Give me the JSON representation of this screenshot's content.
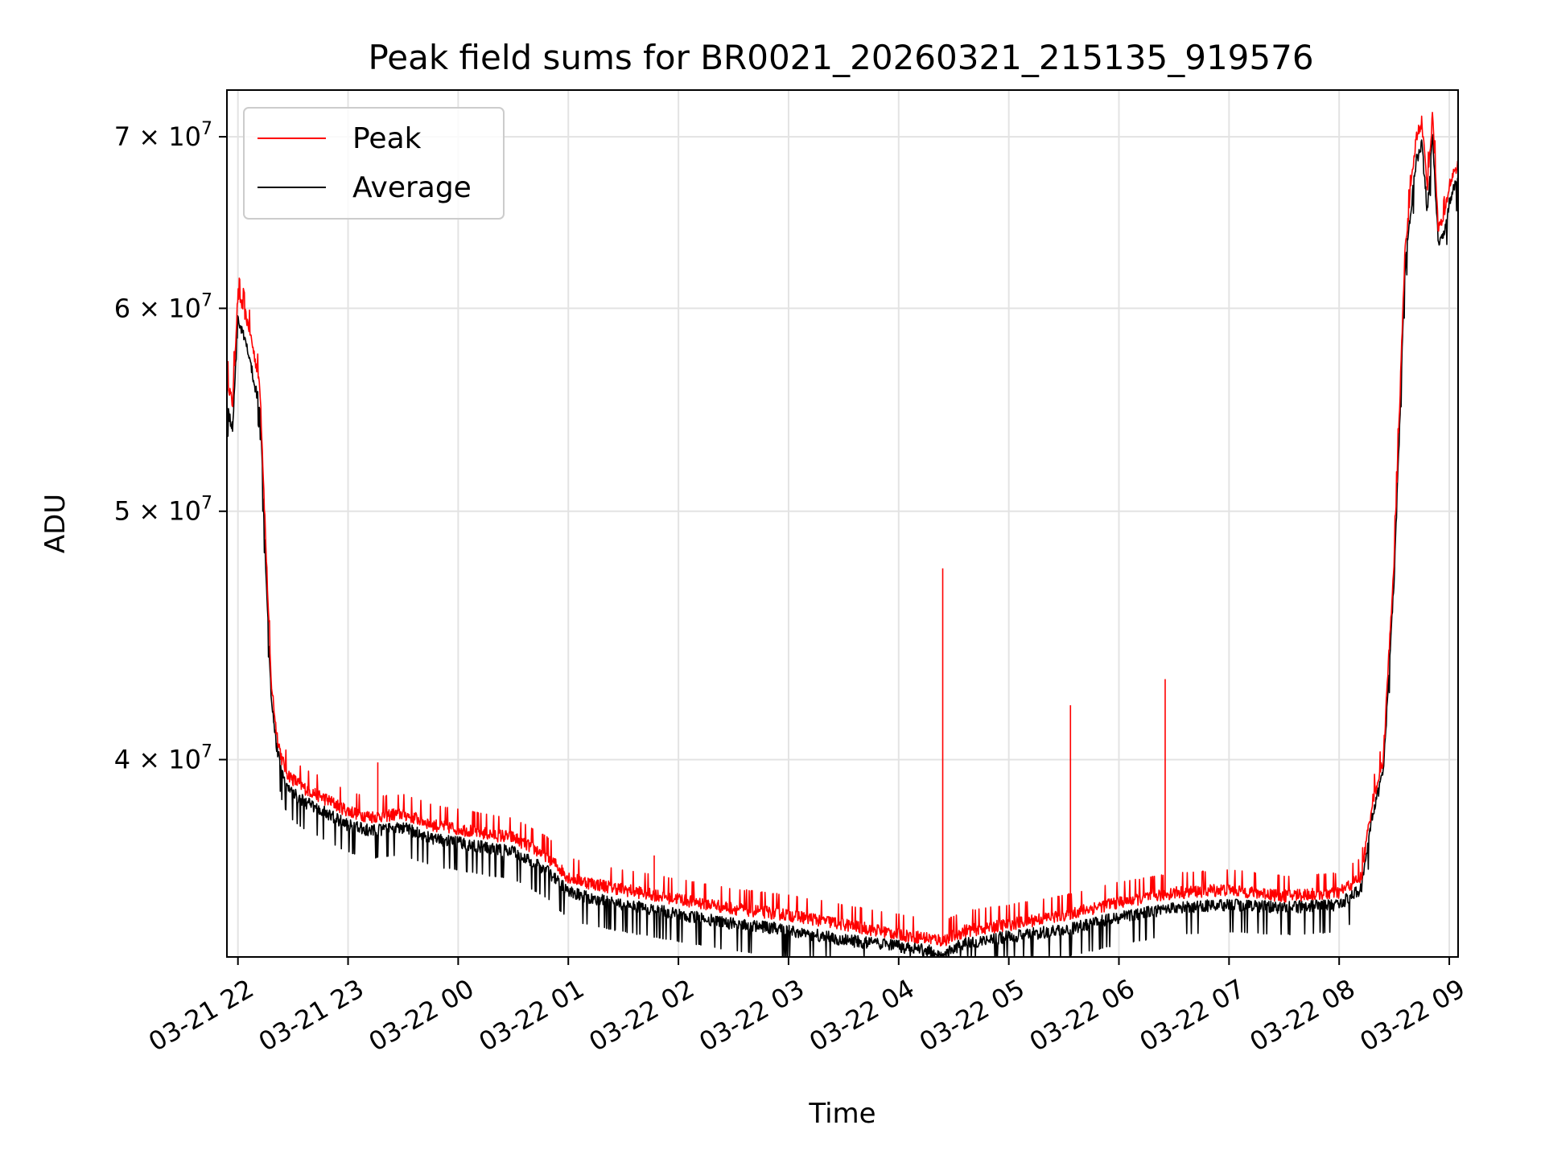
{
  "chart_data": {
    "type": "line",
    "title": "Peak field sums for BR0021_20260321_215135_919576",
    "xlabel": "Time",
    "ylabel": "ADU",
    "yscale": "log",
    "grid": true,
    "legend_position": "top-left",
    "xlim_hours": [
      -0.1,
      11.08
    ],
    "ylim": [
      33500000,
      73000000
    ],
    "x_ticks": [
      {
        "hours": 0,
        "label": "03-21 22"
      },
      {
        "hours": 1,
        "label": "03-21 23"
      },
      {
        "hours": 2,
        "label": "03-22 00"
      },
      {
        "hours": 3,
        "label": "03-22 01"
      },
      {
        "hours": 4,
        "label": "03-22 02"
      },
      {
        "hours": 5,
        "label": "03-22 03"
      },
      {
        "hours": 6,
        "label": "03-22 04"
      },
      {
        "hours": 7,
        "label": "03-22 05"
      },
      {
        "hours": 8,
        "label": "03-22 06"
      },
      {
        "hours": 9,
        "label": "03-22 07"
      },
      {
        "hours": 10,
        "label": "03-22 08"
      },
      {
        "hours": 11,
        "label": "03-22 09"
      }
    ],
    "y_ticks": [
      {
        "value": 40000000,
        "mantissa": "4",
        "exponent": "7"
      },
      {
        "value": 50000000,
        "mantissa": "5",
        "exponent": "7"
      },
      {
        "value": 60000000,
        "mantissa": "6",
        "exponent": "7"
      },
      {
        "value": 70000000,
        "mantissa": "7",
        "exponent": "7"
      }
    ],
    "series": [
      {
        "name": "Peak",
        "color": "#ff0000",
        "x_hours": [
          -0.1,
          -0.05,
          0.0,
          0.05,
          0.1,
          0.15,
          0.2,
          0.25,
          0.3,
          0.35,
          0.4,
          0.45,
          0.5,
          0.6,
          0.7,
          0.8,
          1.0,
          1.2,
          1.5,
          1.8,
          2.0,
          2.3,
          2.5,
          2.8,
          3.0,
          3.2,
          3.5,
          4.0,
          4.5,
          5.0,
          5.5,
          6.0,
          6.4,
          6.6,
          7.0,
          7.5,
          8.0,
          8.5,
          9.0,
          9.5,
          10.0,
          10.2,
          10.3,
          10.4,
          10.5,
          10.6,
          10.7,
          10.75,
          10.8,
          10.85,
          10.9,
          10.95,
          11.0,
          11.05,
          11.08
        ],
        "values": [
          56500000,
          55000000,
          60800000,
          60000000,
          59000000,
          57500000,
          56000000,
          49000000,
          43000000,
          41000000,
          40000000,
          39500000,
          39300000,
          39000000,
          38800000,
          38600000,
          38200000,
          38000000,
          38100000,
          37700000,
          37600000,
          37400000,
          37300000,
          36700000,
          36000000,
          35800000,
          35600000,
          35300000,
          35000000,
          34800000,
          34500000,
          34200000,
          34000000,
          34300000,
          34500000,
          34800000,
          35200000,
          35500000,
          35600000,
          35400000,
          35500000,
          36000000,
          38500000,
          40000000,
          48000000,
          63500000,
          70000000,
          71000000,
          67000000,
          71500000,
          64500000,
          65000000,
          67000000,
          68000000,
          68200000
        ]
      },
      {
        "name": "Average",
        "color": "#000000",
        "x_hours": [
          -0.1,
          -0.05,
          0.0,
          0.05,
          0.1,
          0.15,
          0.2,
          0.25,
          0.3,
          0.35,
          0.4,
          0.45,
          0.5,
          0.6,
          0.7,
          0.8,
          1.0,
          1.2,
          1.5,
          1.8,
          2.0,
          2.3,
          2.5,
          2.8,
          3.0,
          3.2,
          3.5,
          4.0,
          4.5,
          5.0,
          5.5,
          6.0,
          6.4,
          6.6,
          7.0,
          7.5,
          8.0,
          8.5,
          9.0,
          9.5,
          10.0,
          10.2,
          10.3,
          10.4,
          10.5,
          10.6,
          10.7,
          10.75,
          10.8,
          10.85,
          10.9,
          10.95,
          11.0,
          11.05,
          11.08
        ],
        "values": [
          55000000,
          53800000,
          59500000,
          58500000,
          57500000,
          56000000,
          55000000,
          48000000,
          42500000,
          40500000,
          39500000,
          39000000,
          38800000,
          38500000,
          38300000,
          38100000,
          37700000,
          37500000,
          37600000,
          37200000,
          37100000,
          36900000,
          36800000,
          36200000,
          35500000,
          35300000,
          35100000,
          34800000,
          34500000,
          34300000,
          34000000,
          33800000,
          33600000,
          33900000,
          34100000,
          34300000,
          34700000,
          35000000,
          35100000,
          35000000,
          35100000,
          35600000,
          38000000,
          39500000,
          47000000,
          62500000,
          68500000,
          69500000,
          65500000,
          70000000,
          63500000,
          64000000,
          66000000,
          67000000,
          67200000
        ]
      }
    ],
    "spikes": [
      {
        "series": "Peak",
        "x_hours": 1.27,
        "value": 39900000
      },
      {
        "series": "Peak",
        "x_hours": 3.78,
        "value": 36700000
      },
      {
        "series": "Peak",
        "x_hours": 6.4,
        "value": 47500000
      },
      {
        "series": "Peak",
        "x_hours": 7.56,
        "value": 42000000
      },
      {
        "series": "Peak",
        "x_hours": 8.42,
        "value": 43000000
      }
    ]
  }
}
